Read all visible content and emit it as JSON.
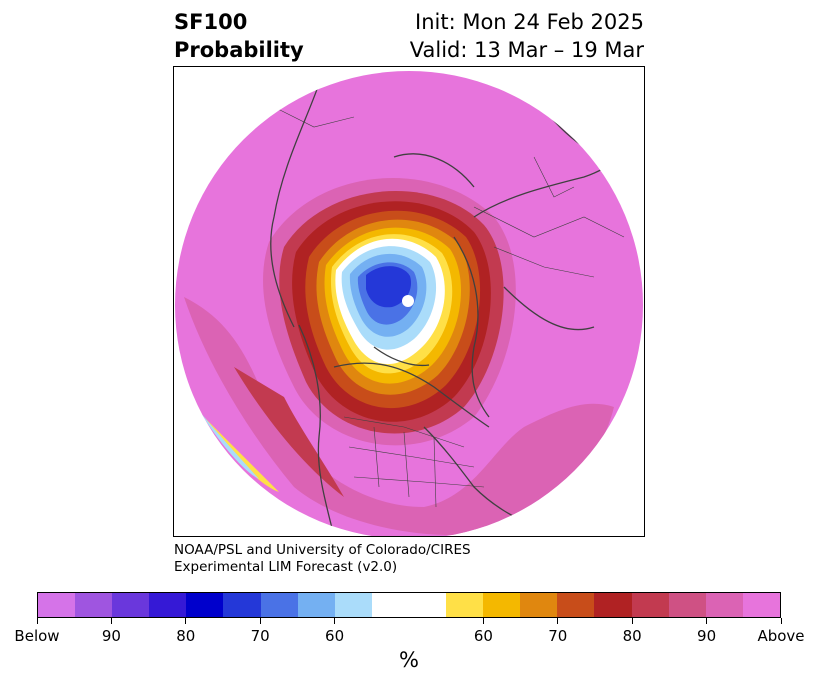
{
  "header": {
    "variable": "SF100",
    "field": "Probability",
    "init": "Init: Mon 24 Feb 2025",
    "valid": "Valid: 13 Mar – 19 Mar"
  },
  "credit": {
    "line1": "NOAA/PSL and University of Colorado/CIRES",
    "line2": "Experimental LIM Forecast (v2.0)"
  },
  "colorbar": {
    "unit": "%",
    "colors": [
      "#d573e8",
      "#9f55e0",
      "#6a37dc",
      "#3519d6",
      "#0000cc",
      "#2438d8",
      "#4a72e6",
      "#74b0f2",
      "#aadcfa",
      "#ffffff",
      "#ffffff",
      "#ffe047",
      "#f4b800",
      "#e0870f",
      "#c84d1a",
      "#b02223",
      "#c23a50",
      "#cf5184",
      "#db63b4",
      "#e774dc"
    ],
    "ticks": [
      "Below",
      "90",
      "80",
      "70",
      "60",
      "60",
      "70",
      "80",
      "90",
      "Above"
    ]
  },
  "map": {
    "projection": "north polar stereographic",
    "palette": {
      "above_high": "#e774dc",
      "above_90": "#db63b4",
      "above_80": "#c23a50",
      "above_75": "#b02223",
      "above_70": "#c84d1a",
      "above_65": "#e0870f",
      "above_60": "#f4b800",
      "above_55": "#ffe047",
      "neutral": "#ffffff",
      "below_55": "#aadcfa",
      "below_60": "#74b0f2",
      "below_65": "#4a72e6",
      "below_70": "#2438d8",
      "coastline": "#404040"
    }
  }
}
